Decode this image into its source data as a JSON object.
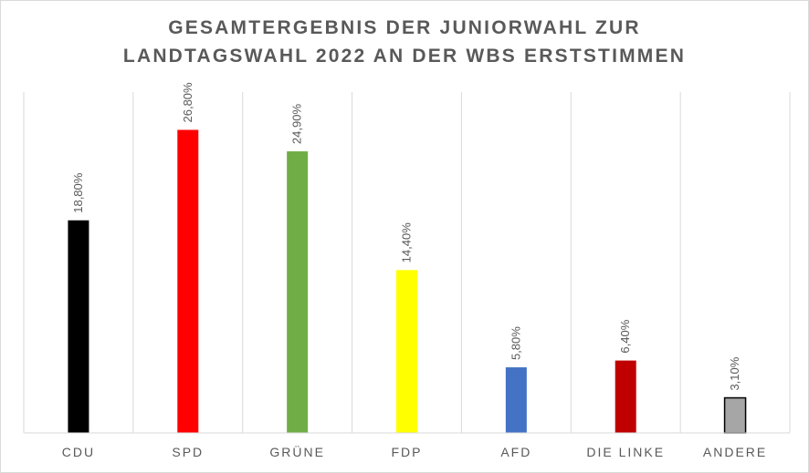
{
  "chart_data": {
    "type": "bar",
    "title_lines": [
      "GESAMTERGEBNIS DER JUNIORWAHL ZUR",
      "LANDTAGSWAHL 2022 AN DER WBS ERSTSTIMMEN"
    ],
    "categories": [
      "CDU",
      "SPD",
      "GRÜNE",
      "FDP",
      "AFD",
      "DIE LINKE",
      "ANDERE"
    ],
    "values": [
      18.8,
      26.8,
      24.9,
      14.4,
      5.8,
      6.4,
      3.1
    ],
    "data_labels": [
      "18,80%",
      "26,80%",
      "24,90%",
      "14,40%",
      "5,80%",
      "6,40%",
      "3,10%"
    ],
    "colors": [
      "#000000",
      "#ff0000",
      "#70ad47",
      "#ffff00",
      "#4472c4",
      "#c00000",
      "#a6a6a6"
    ],
    "xlabel": "",
    "ylabel": "",
    "ylim": [
      0,
      30
    ],
    "grid": "vertical category separators",
    "legend": "none"
  }
}
